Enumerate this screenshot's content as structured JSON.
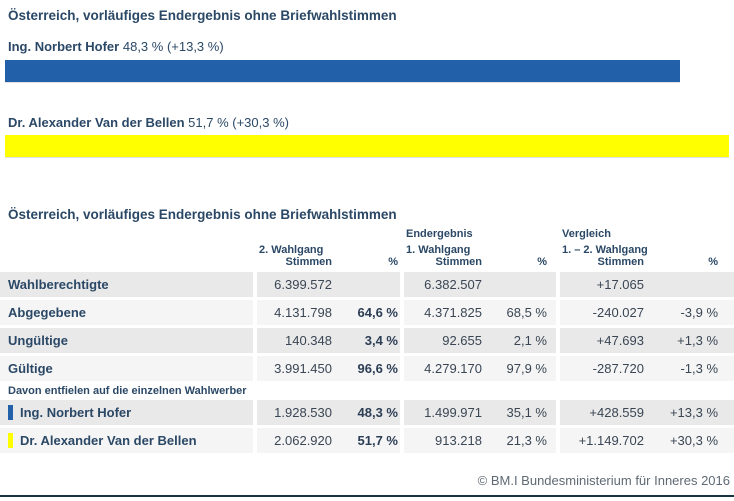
{
  "colors": {
    "navy": "#2b4866",
    "num": "#3a4654",
    "numbold": "#2c3e55",
    "rowdark": "#e9e9e9",
    "rowlight": "#f5f5f5",
    "gray": "#5f6a74",
    "line": "#17333f"
  },
  "top": {
    "title": "Österreich, vorläufiges Endergebnis ohne Briefwahlstimmen",
    "candidates": [
      {
        "name": "Ing. Norbert Hofer",
        "result": "48,3 % (+13,3 %)",
        "color": "#2261a9",
        "bar_width_pct": 92
      },
      {
        "name": "Dr. Alexander Van der Bellen",
        "result": "51,7 % (+30,3 %)",
        "color": "#ffff00",
        "bar_width_pct": 98.6
      }
    ]
  },
  "chart_data": {
    "type": "bar",
    "orientation": "horizontal",
    "title": "Österreich, vorläufiges Endergebnis ohne Briefwahlstimmen",
    "categories": [
      "Ing. Norbert Hofer",
      "Dr. Alexander Van der Bellen"
    ],
    "values": [
      48.3,
      51.7
    ],
    "value_labels": [
      "48,3 % (+13,3 %)",
      "51,7 % (+30,3 %)"
    ],
    "colors": [
      "#2261a9",
      "#ffff00"
    ],
    "xlabel": "",
    "ylabel": "",
    "grid": false,
    "legend": false
  },
  "table": {
    "title": "Österreich, vorläufiges Endergebnis ohne Briefwahlstimmen",
    "header": {
      "group2_line1": "Endergebnis",
      "group3_line1": "Vergleich",
      "group1_line2": "2. Wahlgang",
      "group2_line2": "1. Wahlgang",
      "group3_line2": "1. – 2. Wahlgang",
      "col_votes": "Stimmen",
      "col_pct": "%"
    },
    "rows": [
      {
        "label": "Wahlberechtigte",
        "cells": [
          "6.399.572",
          "",
          "6.382.507",
          "",
          "+17.065",
          ""
        ]
      },
      {
        "label": "Abgegebene",
        "cells": [
          "4.131.798",
          "64,6 %",
          "4.371.825",
          "68,5 %",
          "-240.027",
          "-3,9 %"
        ]
      },
      {
        "label": "Ungültige",
        "cells": [
          "140.348",
          "3,4 %",
          "92.655",
          "2,1 %",
          "+47.693",
          "+1,3 %"
        ]
      },
      {
        "label": "Gültige",
        "cells": [
          "3.991.450",
          "96,6 %",
          "4.279.170",
          "97,9 %",
          "-287.720",
          "-1,3 %"
        ]
      }
    ],
    "subheader": "Davon entfielen auf die einzelnen Wahlwerber",
    "candidate_rows": [
      {
        "label": "Ing. Norbert Hofer",
        "color": "#2261a9",
        "cells": [
          "1.928.530",
          "48,3 %",
          "1.499.971",
          "35,1 %",
          "+428.559",
          "+13,3 %"
        ]
      },
      {
        "label": "Dr. Alexander Van der Bellen",
        "color": "#ffff00",
        "cells": [
          "2.062.920",
          "51,7 %",
          "913.218",
          "21,3 %",
          "+1.149.702",
          "+30,3 %"
        ]
      }
    ]
  },
  "footer": {
    "copyright": "© BM.I Bundesministerium für Inneres 2016"
  }
}
